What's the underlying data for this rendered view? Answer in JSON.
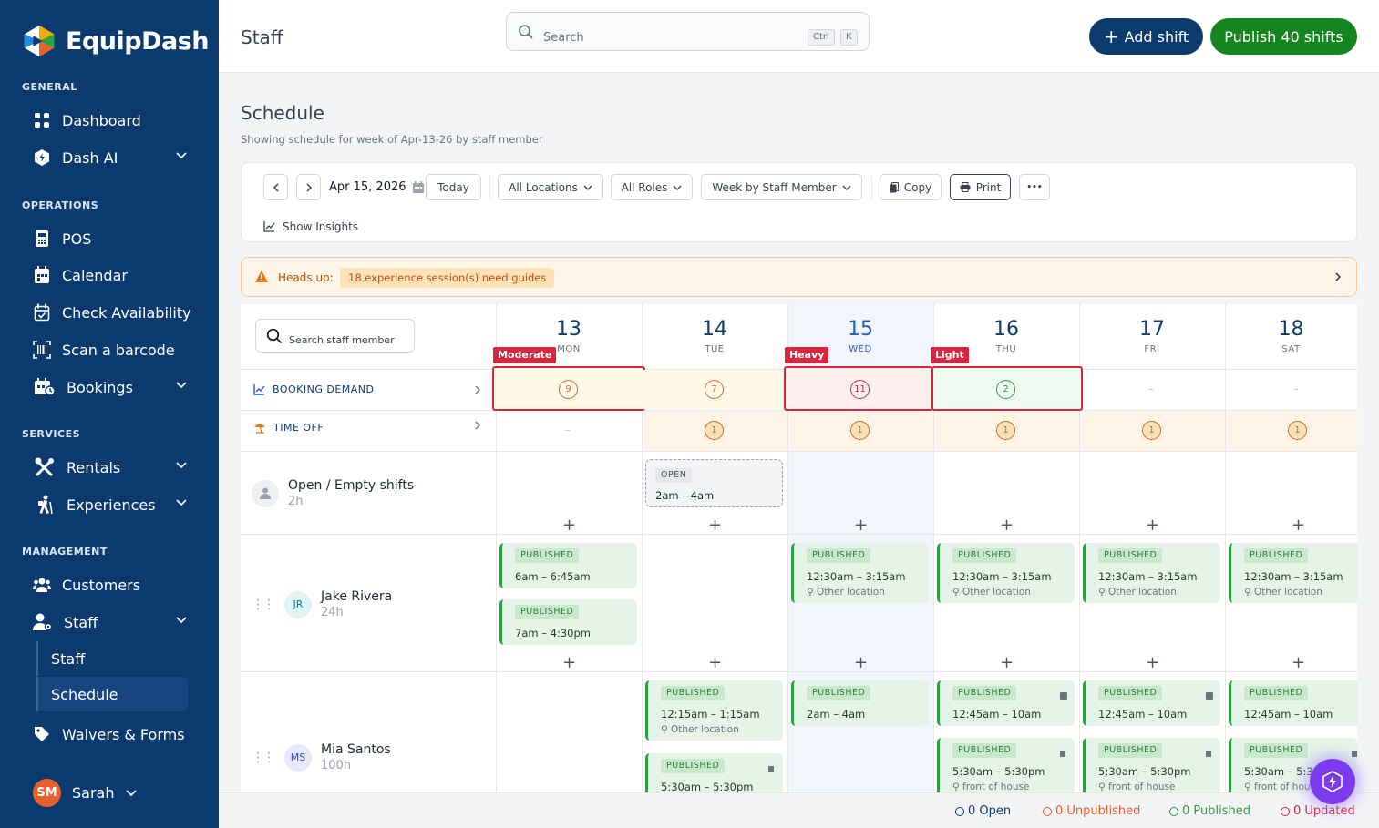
{
  "brand": {
    "name": "EquipDash"
  },
  "sidebar": {
    "sections": {
      "general": "GENERAL",
      "operations": "OPERATIONS",
      "services": "SERVICES",
      "management": "MANAGEMENT"
    },
    "items": {
      "dashboard": "Dashboard",
      "dash_ai": "Dash AI",
      "pos": "POS",
      "calendar": "Calendar",
      "check_availability": "Check Availability",
      "scan_barcode": "Scan a barcode",
      "bookings": "Bookings",
      "rentals": "Rentals",
      "experiences": "Experiences",
      "customers": "Customers",
      "staff": "Staff",
      "staff_sub": "Staff",
      "schedule_sub": "Schedule",
      "waivers": "Waivers & Forms"
    },
    "user": {
      "initials": "SM",
      "name": "Sarah"
    }
  },
  "topbar": {
    "title": "Staff",
    "search_placeholder": "Search",
    "kbd_ctrl": "Ctrl",
    "kbd_k": "K",
    "add_shift": "Add shift",
    "publish": "Publish 40 shifts"
  },
  "schedule": {
    "title": "Schedule",
    "subtitle": "Showing schedule for week of Apr-13-26 by staff member"
  },
  "toolbar": {
    "date": "Apr 15, 2026",
    "today": "Today",
    "locations": "All Locations",
    "roles": "All Roles",
    "view": "Week by Staff Member",
    "copy": "Copy",
    "print": "Print",
    "more": "•••",
    "insights": "Show Insights"
  },
  "alert": {
    "label": "Heads up:",
    "badge": "18 experience session(s) need guides"
  },
  "grid": {
    "staff_search": "Search staff member",
    "days": [
      {
        "num": "13",
        "name": "MON"
      },
      {
        "num": "14",
        "name": "TUE"
      },
      {
        "num": "15",
        "name": "WED"
      },
      {
        "num": "16",
        "name": "THU"
      },
      {
        "num": "17",
        "name": "FRI"
      },
      {
        "num": "18",
        "name": "SAT"
      }
    ],
    "demand_tags": {
      "mon": "Moderate",
      "wed": "Heavy",
      "thu": "Light"
    },
    "booking_demand_label": "BOOKING DEMAND",
    "time_off_label": "TIME OFF",
    "demand_values": {
      "mon": "9",
      "tue": "7",
      "wed": "11",
      "thu": "2",
      "fri": "–",
      "sat": "–"
    },
    "time_off_values": {
      "mon": "–",
      "tue": "1",
      "wed": "1",
      "thu": "1",
      "fri": "1",
      "sat": "1"
    },
    "rows": {
      "open": {
        "name": "Open / Empty shifts",
        "hours": "2h",
        "shift_tag": "OPEN",
        "shift_time": "2am – 4am"
      },
      "jake": {
        "initials": "JR",
        "name": "Jake Rivera",
        "hours": "24h"
      },
      "mia": {
        "initials": "MS",
        "name": "Mia Santos",
        "hours": "100h"
      }
    },
    "published_tag": "PUBLISHED",
    "jake_shifts": {
      "mon1": "6am – 6:45am",
      "mon2": "7am – 4:30pm",
      "wed": "12:30am – 3:15am",
      "thu": "12:30am – 3:15am",
      "fri": "12:30am – 3:15am",
      "sat": "12:30am – 3:15am",
      "loc": "Other location"
    },
    "mia_shifts": {
      "tue1": "12:15am – 1:15am",
      "tue1_loc": "Other location",
      "tue2": "5:30am – 5:30pm",
      "wed": "2am – 4am",
      "thu1": "12:45am – 10am",
      "fri1": "12:45am – 10am",
      "sat1": "12:45am – 10am",
      "thu2": "5:30am – 5:30pm",
      "fri2": "5:30am – 5:30pm",
      "sat2": "5:30am – 5:30",
      "loc2": "front of house",
      "loc2_short": "front of hous"
    }
  },
  "footer": {
    "open": "0 Open",
    "unpublished": "0 Unpublished",
    "published": "0 Published",
    "updated": "0 Updated"
  },
  "colors": {
    "navy": "#0b3a6e",
    "green": "#16841f",
    "red": "#d7263d",
    "orange": "#e8602c"
  }
}
